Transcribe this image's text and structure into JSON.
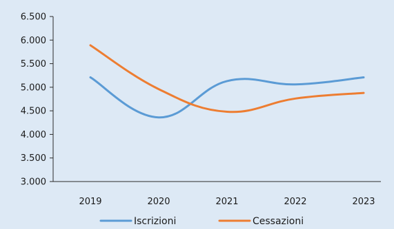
{
  "chart_data": {
    "type": "line",
    "categories": [
      "2019",
      "2020",
      "2021",
      "2022",
      "2023"
    ],
    "series": [
      {
        "name": "Iscrizioni",
        "values": [
          5210,
          4360,
          5130,
          5060,
          5210
        ],
        "color": "#5b9bd5"
      },
      {
        "name": "Cessazioni",
        "values": [
          5890,
          4960,
          4480,
          4760,
          4880
        ],
        "color": "#ed7d31"
      }
    ],
    "ylim": [
      3000,
      6500
    ],
    "yticks": [
      "3.000",
      "3.500",
      "4.000",
      "4.500",
      "5.000",
      "5.500",
      "6.000",
      "6.500"
    ],
    "smooth": true,
    "grid": false,
    "legend_position": "bottom",
    "background": "#dde9f5"
  }
}
